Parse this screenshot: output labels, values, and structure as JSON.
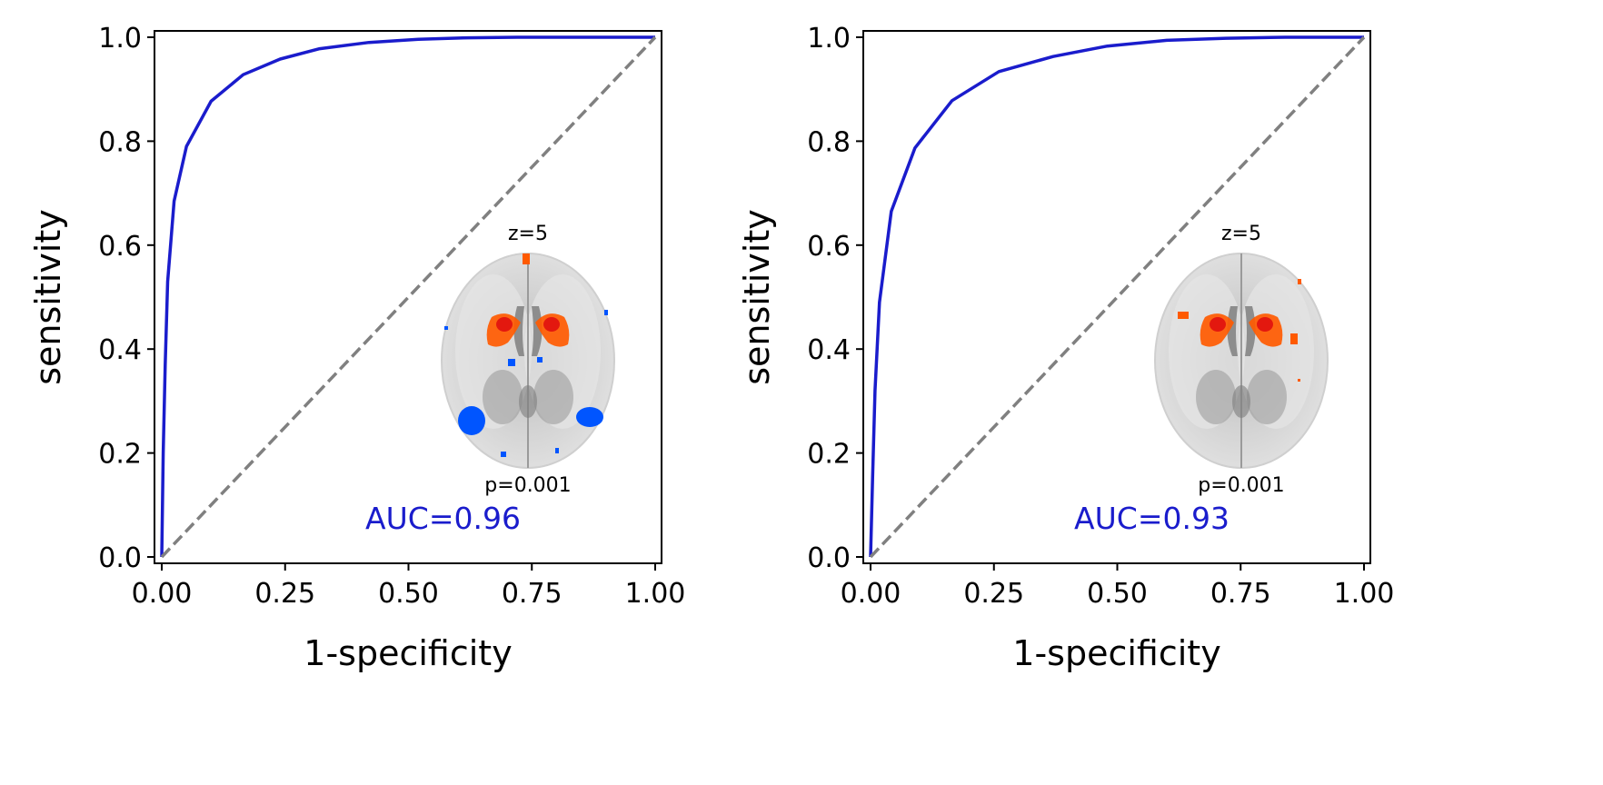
{
  "chart_data": [
    {
      "type": "line",
      "xlabel": "1-specificity",
      "ylabel": "sensitivity",
      "xlim": [
        0,
        1
      ],
      "ylim": [
        0,
        1
      ],
      "xticks": [
        "0.00",
        "0.25",
        "0.50",
        "0.75",
        "1.00"
      ],
      "yticks": [
        "0.0",
        "0.2",
        "0.4",
        "0.6",
        "0.8",
        "1.0"
      ],
      "grid": false,
      "series": [
        {
          "color": "#1a1ccc",
          "x": [
            0,
            0.003,
            0.007,
            0.012,
            0.025,
            0.05,
            0.1,
            0.165,
            0.24,
            0.32,
            0.42,
            0.52,
            0.62,
            0.72,
            0.85,
            1.0
          ],
          "y": [
            0,
            0.2,
            0.37,
            0.53,
            0.685,
            0.79,
            0.877,
            0.928,
            0.958,
            0.978,
            0.99,
            0.996,
            0.999,
            1.0,
            1.0,
            1.0
          ]
        },
        {
          "color": "#808080",
          "style": "dashed",
          "x": [
            0,
            1
          ],
          "y": [
            0,
            1
          ]
        }
      ],
      "annotations": {
        "auc": "AUC=0.96",
        "inset_top": "z=5",
        "inset_bottom": "p=0.001"
      },
      "inset": {
        "image": "axial-brain-slice",
        "activation_colors": [
          "#ff5a00",
          "#0055ff"
        ]
      }
    },
    {
      "type": "line",
      "xlabel": "1-specificity",
      "ylabel": "sensitivity",
      "xlim": [
        0,
        1
      ],
      "ylim": [
        0,
        1
      ],
      "xticks": [
        "0.00",
        "0.25",
        "0.50",
        "0.75",
        "1.00"
      ],
      "yticks": [
        "0.0",
        "0.2",
        "0.4",
        "0.6",
        "0.8",
        "1.0"
      ],
      "grid": false,
      "series": [
        {
          "color": "#1a1ccc",
          "x": [
            0,
            0.004,
            0.009,
            0.018,
            0.042,
            0.09,
            0.165,
            0.26,
            0.37,
            0.48,
            0.6,
            0.72,
            0.84,
            1.0
          ],
          "y": [
            0,
            0.15,
            0.32,
            0.49,
            0.665,
            0.787,
            0.878,
            0.934,
            0.963,
            0.983,
            0.994,
            0.998,
            1.0,
            1.0
          ]
        },
        {
          "color": "#808080",
          "style": "dashed",
          "x": [
            0,
            1
          ],
          "y": [
            0,
            1
          ]
        }
      ],
      "annotations": {
        "auc": "AUC=0.93",
        "inset_top": "z=5",
        "inset_bottom": "p=0.001"
      },
      "inset": {
        "image": "axial-brain-slice",
        "activation_colors": [
          "#ff5a00"
        ]
      }
    }
  ]
}
